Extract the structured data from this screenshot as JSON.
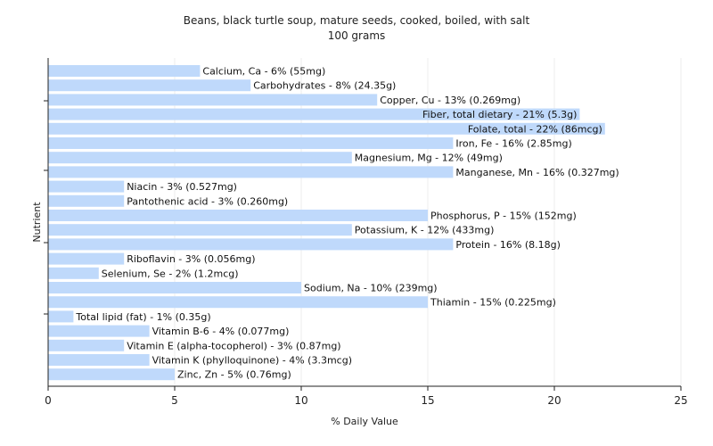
{
  "chart_data": {
    "type": "bar",
    "orientation": "horizontal",
    "title": "Beans, black turtle soup, mature seeds, cooked, boiled, with salt",
    "subtitle": "100 grams",
    "xlabel": "% Daily Value",
    "ylabel": "Nutrient",
    "xlim": [
      0,
      25
    ],
    "xticks": [
      "0",
      "5",
      "10",
      "15",
      "20",
      "25"
    ],
    "grid": true,
    "bar_color": "#bfd9fb",
    "categories": [
      "Calcium, Ca",
      "Carbohydrates",
      "Copper, Cu",
      "Fiber, total dietary",
      "Folate, total",
      "Iron, Fe",
      "Magnesium, Mg",
      "Manganese, Mn",
      "Niacin",
      "Pantothenic acid",
      "Phosphorus, P",
      "Potassium, K",
      "Protein",
      "Riboflavin",
      "Selenium, Se",
      "Sodium, Na",
      "Thiamin",
      "Total lipid (fat)",
      "Vitamin B-6",
      "Vitamin E (alpha-tocopherol)",
      "Vitamin K (phylloquinone)",
      "Zinc, Zn"
    ],
    "values": [
      6,
      8,
      13,
      21,
      22,
      16,
      12,
      16,
      3,
      3,
      15,
      12,
      16,
      3,
      2,
      10,
      15,
      1,
      4,
      3,
      4,
      5
    ],
    "labels": [
      "Calcium, Ca - 6% (55mg)",
      "Carbohydrates - 8% (24.35g)",
      "Copper, Cu - 13% (0.269mg)",
      "Fiber, total dietary - 21% (5.3g)",
      "Folate, total - 22% (86mcg)",
      "Iron, Fe - 16% (2.85mg)",
      "Magnesium, Mg - 12% (49mg)",
      "Manganese, Mn - 16% (0.327mg)",
      "Niacin - 3% (0.527mg)",
      "Pantothenic acid - 3% (0.260mg)",
      "Phosphorus, P - 15% (152mg)",
      "Potassium, K - 12% (433mg)",
      "Protein - 16% (8.18g)",
      "Riboflavin - 3% (0.056mg)",
      "Selenium, Se - 2% (1.2mcg)",
      "Sodium, Na - 10% (239mg)",
      "Thiamin - 15% (0.225mg)",
      "Total lipid (fat) - 1% (0.35g)",
      "Vitamin B-6 - 4% (0.077mg)",
      "Vitamin E (alpha-tocopherol) - 3% (0.87mg)",
      "Vitamin K (phylloquinone) - 4% (3.3mcg)",
      "Zinc, Zn - 5% (0.76mg)"
    ]
  }
}
